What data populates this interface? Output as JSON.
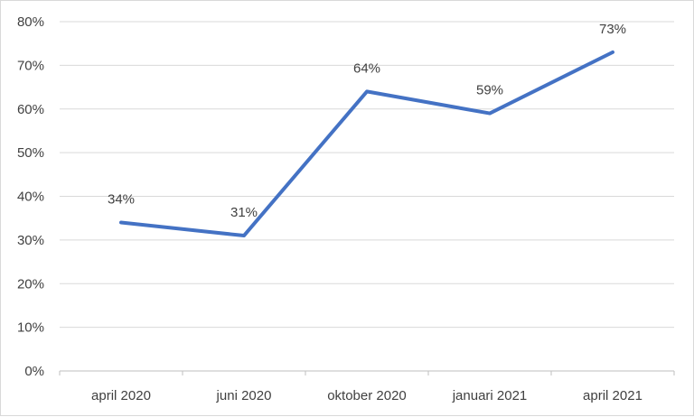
{
  "chart_data": {
    "type": "line",
    "categories": [
      "april 2020",
      "juni 2020",
      "oktober 2020",
      "januari 2021",
      "april 2021"
    ],
    "series": [
      {
        "values": [
          34,
          31,
          64,
          59,
          73
        ],
        "color": "#4472c4",
        "data_labels": [
          "34%",
          "31%",
          "64%",
          "59%",
          "73%"
        ]
      }
    ],
    "ylim": [
      0,
      80
    ],
    "y_ticks": [
      0,
      10,
      20,
      30,
      40,
      50,
      60,
      70,
      80
    ],
    "y_tick_labels": [
      "0%",
      "10%",
      "20%",
      "30%",
      "40%",
      "50%",
      "60%",
      "70%",
      "80%"
    ],
    "grid": true,
    "gridline_color": "#d9d9d9",
    "legend": "none",
    "title": "",
    "xlabel": "",
    "ylabel": ""
  }
}
